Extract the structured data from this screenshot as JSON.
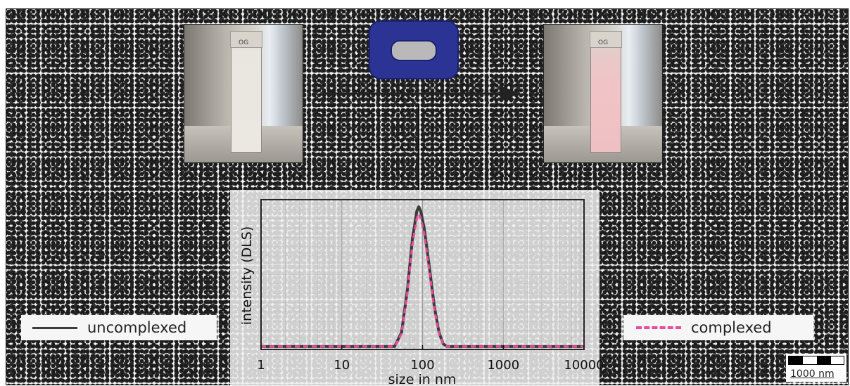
{
  "figure": {
    "left_photo_label": "OG",
    "right_photo_label": "OG"
  },
  "legend": {
    "uncomplexed": "uncomplexed",
    "complexed": "complexed"
  },
  "scalebar": {
    "label": "1000 nm"
  },
  "colors": {
    "uncomplexed_line": "#3b3b3b",
    "complexed_line": "#e74c9d",
    "macrocycle": "#2b3494"
  },
  "chart_data": {
    "type": "line",
    "xlabel": "size in nm",
    "ylabel": "intensity (DLS)",
    "x_scale": "log",
    "xlim": [
      1,
      10000
    ],
    "ylim": [
      0,
      1.05
    ],
    "x_ticks": [
      1,
      10,
      100,
      1000,
      10000
    ],
    "x_tick_labels": [
      "1",
      "10",
      "100",
      "1000",
      "10000"
    ],
    "grid": true,
    "series": [
      {
        "name": "uncomplexed",
        "style": "solid",
        "x": [
          1,
          10,
          30,
          45,
          55,
          65,
          75,
          85,
          90,
          95,
          105,
          120,
          140,
          160,
          180,
          200,
          1000,
          10000
        ],
        "y": [
          0.02,
          0.02,
          0.02,
          0.02,
          0.12,
          0.42,
          0.78,
          0.97,
          1.0,
          0.97,
          0.85,
          0.6,
          0.3,
          0.12,
          0.04,
          0.02,
          0.02,
          0.02
        ]
      },
      {
        "name": "complexed",
        "style": "dashed",
        "x": [
          1,
          10,
          30,
          45,
          55,
          65,
          75,
          85,
          90,
          95,
          105,
          120,
          140,
          160,
          180,
          200,
          1000,
          10000
        ],
        "y": [
          0.02,
          0.02,
          0.02,
          0.02,
          0.11,
          0.4,
          0.74,
          0.92,
          0.95,
          0.92,
          0.81,
          0.57,
          0.28,
          0.11,
          0.04,
          0.02,
          0.02,
          0.02
        ]
      }
    ]
  }
}
